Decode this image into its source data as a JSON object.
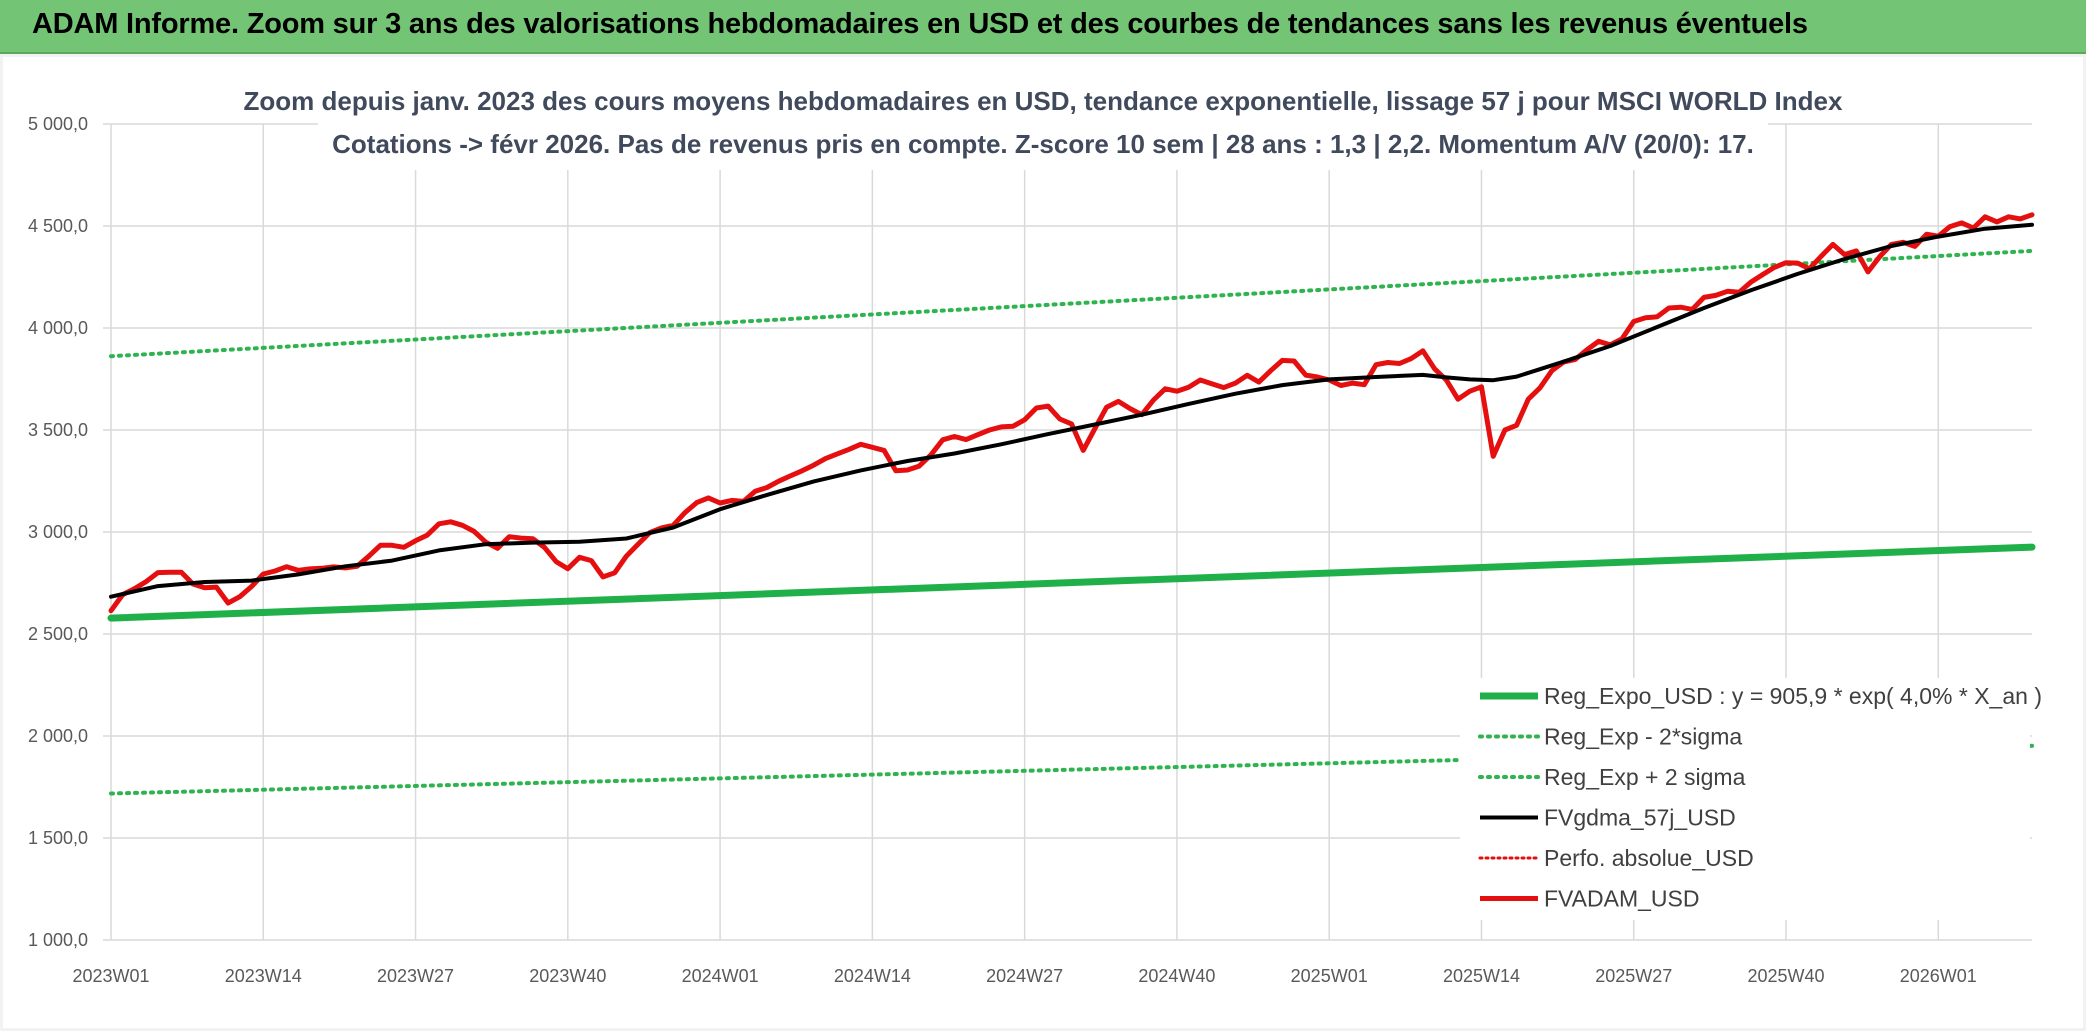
{
  "header": {
    "title": "ADAM Informe. Zoom sur 3 ans des valorisations hebdomadaires en USD et des courbes de tendances sans les revenus éventuels"
  },
  "colors": {
    "banner": "#74c476",
    "regression": "#1fb04a",
    "sigma": "#2fb34f",
    "smoothed": "#000000",
    "perf_absolue": "#e01010",
    "price": "#e60f0f"
  },
  "chart_data": {
    "type": "line",
    "title": "Zoom depuis janv. 2023 des cours moyens hebdomadaires en USD, tendance exponentielle, lissage 57 j pour MSCI WORLD Index",
    "subtitle": "Cotations -> févr 2026. Pas de revenus pris en compte. Z-score 10 sem | 28 ans : 1,3 | 2,2. Momentum A/V (20/0): 17.",
    "xlabel": "",
    "ylabel": "",
    "ylim": [
      1000,
      5000
    ],
    "y_ticks": [
      1000,
      1500,
      2000,
      2500,
      3000,
      3500,
      4000,
      4500,
      5000
    ],
    "y_tick_labels": [
      "1 000,0",
      "1 500,0",
      "2 000,0",
      "2 500,0",
      "3 000,0",
      "3 500,0",
      "4 000,0",
      "4 500,0",
      "5 000,0"
    ],
    "x_tick_labels": [
      "2023W01",
      "2023W14",
      "2023W27",
      "2023W40",
      "2024W01",
      "2024W14",
      "2024W27",
      "2024W40",
      "2025W01",
      "2025W14",
      "2025W27",
      "2025W40",
      "2026W01"
    ],
    "x_tick_weeks": [
      0,
      13,
      26,
      39,
      52,
      65,
      78,
      91,
      104,
      117,
      130,
      143,
      156
    ],
    "x_range_weeks": [
      0,
      164
    ],
    "grid": true,
    "legend_position": "bottom-right",
    "series": [
      {
        "name": "Reg_Expo_USD : y = 905,9 * exp( 4,0% *  X_an )",
        "style": "solid-thick",
        "x": [
          0,
          164
        ],
        "values": [
          2578,
          2926
        ]
      },
      {
        "name": "Reg_Exp - 2*sigma",
        "style": "dotted",
        "x": [
          0,
          164
        ],
        "values": [
          1718,
          1952
        ]
      },
      {
        "name": "Reg_Exp + 2 sigma",
        "style": "dotted",
        "x": [
          0,
          164
        ],
        "values": [
          3862,
          4378
        ]
      },
      {
        "name": "FVgdma_57j_USD",
        "style": "solid",
        "x": [
          0,
          4,
          8,
          12,
          16,
          20,
          24,
          28,
          32,
          36,
          40,
          44,
          48,
          52,
          56,
          60,
          64,
          68,
          72,
          76,
          80,
          84,
          88,
          92,
          96,
          100,
          104,
          108,
          112,
          114,
          116,
          118,
          120,
          124,
          128,
          132,
          136,
          140,
          144,
          148,
          152,
          156,
          160,
          164
        ],
        "values": [
          2683,
          2735,
          2755,
          2762,
          2792,
          2832,
          2860,
          2910,
          2940,
          2948,
          2952,
          2968,
          3022,
          3112,
          3182,
          3248,
          3302,
          3348,
          3385,
          3430,
          3480,
          3527,
          3575,
          3628,
          3678,
          3720,
          3748,
          3760,
          3770,
          3758,
          3748,
          3744,
          3762,
          3835,
          3912,
          4005,
          4098,
          4185,
          4265,
          4338,
          4402,
          4448,
          4487,
          4506
        ]
      },
      {
        "name": "Perfo. absolue_USD",
        "style": "dotted",
        "x": [],
        "values": []
      },
      {
        "name": "FVADAM_USD",
        "style": "solid-thick",
        "x": [
          0,
          1,
          2,
          3,
          4,
          5,
          6,
          7,
          8,
          9,
          10,
          11,
          12,
          13,
          14,
          15,
          16,
          17,
          18,
          19,
          20,
          21,
          22,
          23,
          24,
          25,
          26,
          27,
          28,
          29,
          30,
          31,
          32,
          33,
          34,
          35,
          36,
          37,
          38,
          39,
          40,
          41,
          42,
          43,
          44,
          45,
          46,
          47,
          48,
          49,
          50,
          51,
          52,
          53,
          54,
          55,
          56,
          57,
          58,
          59,
          60,
          61,
          62,
          63,
          64,
          65,
          66,
          67,
          68,
          69,
          70,
          71,
          72,
          73,
          74,
          75,
          76,
          77,
          78,
          79,
          80,
          81,
          82,
          83,
          84,
          85,
          86,
          87,
          88,
          89,
          90,
          91,
          92,
          93,
          94,
          95,
          96,
          97,
          98,
          99,
          100,
          101,
          102,
          103,
          104,
          105,
          106,
          107,
          108,
          109,
          110,
          111,
          112,
          113,
          114,
          115,
          116,
          117,
          118,
          119,
          120,
          121,
          122,
          123,
          124,
          125,
          126,
          127,
          128,
          129,
          130,
          131,
          132,
          133,
          134,
          135,
          136,
          137,
          138,
          139,
          140,
          141,
          142,
          143,
          144,
          145,
          146,
          147,
          148,
          149,
          150,
          151,
          152,
          153,
          154,
          155,
          156,
          157,
          158,
          159,
          160,
          161,
          162,
          163,
          164
        ],
        "values": [
          2614,
          2693,
          2722,
          2757,
          2801,
          2803,
          2803,
          2745,
          2727,
          2730,
          2652,
          2683,
          2733,
          2794,
          2809,
          2830,
          2812,
          2819,
          2822,
          2829,
          2824,
          2832,
          2881,
          2935,
          2935,
          2925,
          2957,
          2985,
          3040,
          3050,
          3033,
          3003,
          2950,
          2920,
          2977,
          2970,
          2967,
          2925,
          2855,
          2820,
          2876,
          2860,
          2780,
          2800,
          2882,
          2940,
          2997,
          3020,
          3033,
          3095,
          3144,
          3167,
          3142,
          3155,
          3150,
          3200,
          3218,
          3249,
          3275,
          3300,
          3328,
          3360,
          3383,
          3405,
          3430,
          3415,
          3400,
          3300,
          3304,
          3323,
          3378,
          3452,
          3468,
          3453,
          3477,
          3500,
          3515,
          3518,
          3550,
          3608,
          3617,
          3554,
          3530,
          3400,
          3507,
          3612,
          3640,
          3605,
          3575,
          3647,
          3702,
          3690,
          3710,
          3745,
          3726,
          3708,
          3730,
          3768,
          3735,
          3790,
          3841,
          3838,
          3769,
          3760,
          3745,
          3718,
          3730,
          3722,
          3820,
          3831,
          3826,
          3850,
          3888,
          3800,
          3745,
          3651,
          3690,
          3712,
          3371,
          3500,
          3523,
          3651,
          3707,
          3790,
          3833,
          3846,
          3893,
          3935,
          3917,
          3947,
          4032,
          4050,
          4055,
          4098,
          4102,
          4091,
          4150,
          4160,
          4180,
          4175,
          4225,
          4262,
          4297,
          4320,
          4318,
          4290,
          4352,
          4410,
          4360,
          4378,
          4275,
          4350,
          4410,
          4420,
          4400,
          4460,
          4450,
          4497,
          4515,
          4490,
          4545,
          4520,
          4545,
          4535,
          4555
        ]
      }
    ]
  }
}
